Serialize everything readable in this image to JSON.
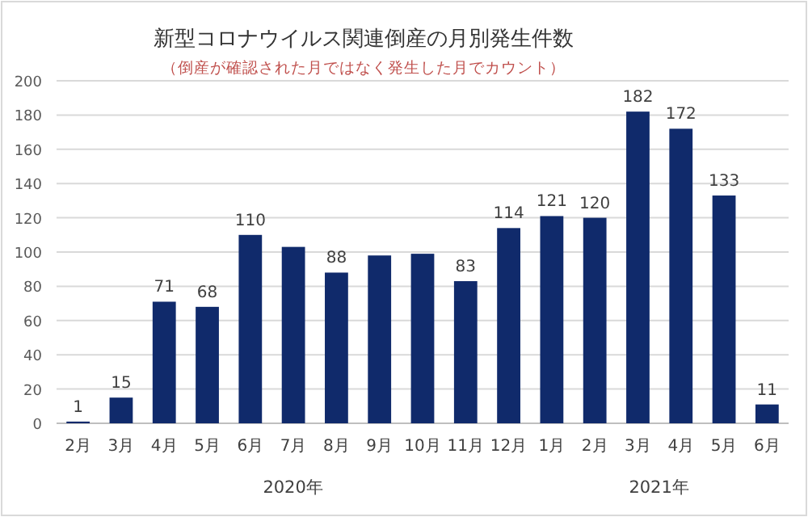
{
  "chart_data": {
    "type": "bar",
    "title": "新型コロナウイルス関連倒産の月別発生件数",
    "subtitle": "（倒産が確認された月ではなく発生した月でカウント）",
    "categories": [
      "2月",
      "3月",
      "4月",
      "5月",
      "6月",
      "7月",
      "8月",
      "9月",
      "10月",
      "11月",
      "12月",
      "1月",
      "2月",
      "3月",
      "4月",
      "5月",
      "6月"
    ],
    "values": [
      1,
      15,
      71,
      68,
      110,
      103,
      88,
      98,
      99,
      83,
      114,
      121,
      120,
      182,
      172,
      133,
      11
    ],
    "value_labels": [
      "1",
      "15",
      "71",
      "68",
      "110",
      null,
      "88",
      null,
      null,
      "83",
      "114",
      "121",
      "120",
      "182",
      "172",
      "133",
      "11"
    ],
    "color": "#102a6b",
    "annotations": [
      "2020年",
      "2021年"
    ],
    "ylim": [
      0,
      200
    ],
    "yticks": [
      0,
      20,
      40,
      60,
      80,
      100,
      120,
      140,
      160,
      180,
      200
    ],
    "grid": "y"
  }
}
